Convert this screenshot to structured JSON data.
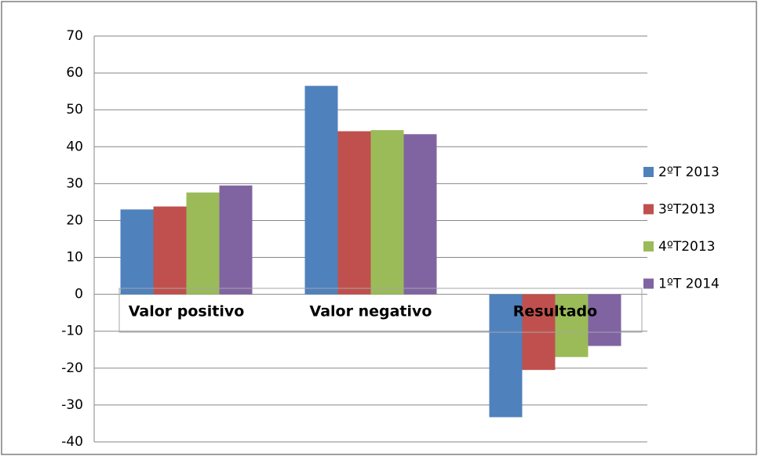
{
  "chart_data": {
    "type": "bar",
    "categories": [
      "Valor positivo",
      "Valor negativo",
      "Resultado"
    ],
    "series": [
      {
        "name": "2ºT 2013",
        "color": "#4f81bd",
        "values": [
          23,
          56.5,
          -33.3
        ]
      },
      {
        "name": "3ºT2013",
        "color": "#c0504d",
        "values": [
          23.8,
          44.2,
          -20.5
        ]
      },
      {
        "name": "4ºT2013",
        "color": "#9bbb59",
        "values": [
          27.6,
          44.5,
          -17
        ]
      },
      {
        "name": "1ºT 2014",
        "color": "#8064a2",
        "values": [
          29.5,
          43.4,
          -14
        ]
      }
    ],
    "ylim": [
      -40,
      70
    ],
    "yticks": [
      -40,
      -30,
      -20,
      -10,
      0,
      10,
      20,
      30,
      40,
      50,
      60,
      70
    ],
    "grid": true,
    "legend": "right"
  }
}
